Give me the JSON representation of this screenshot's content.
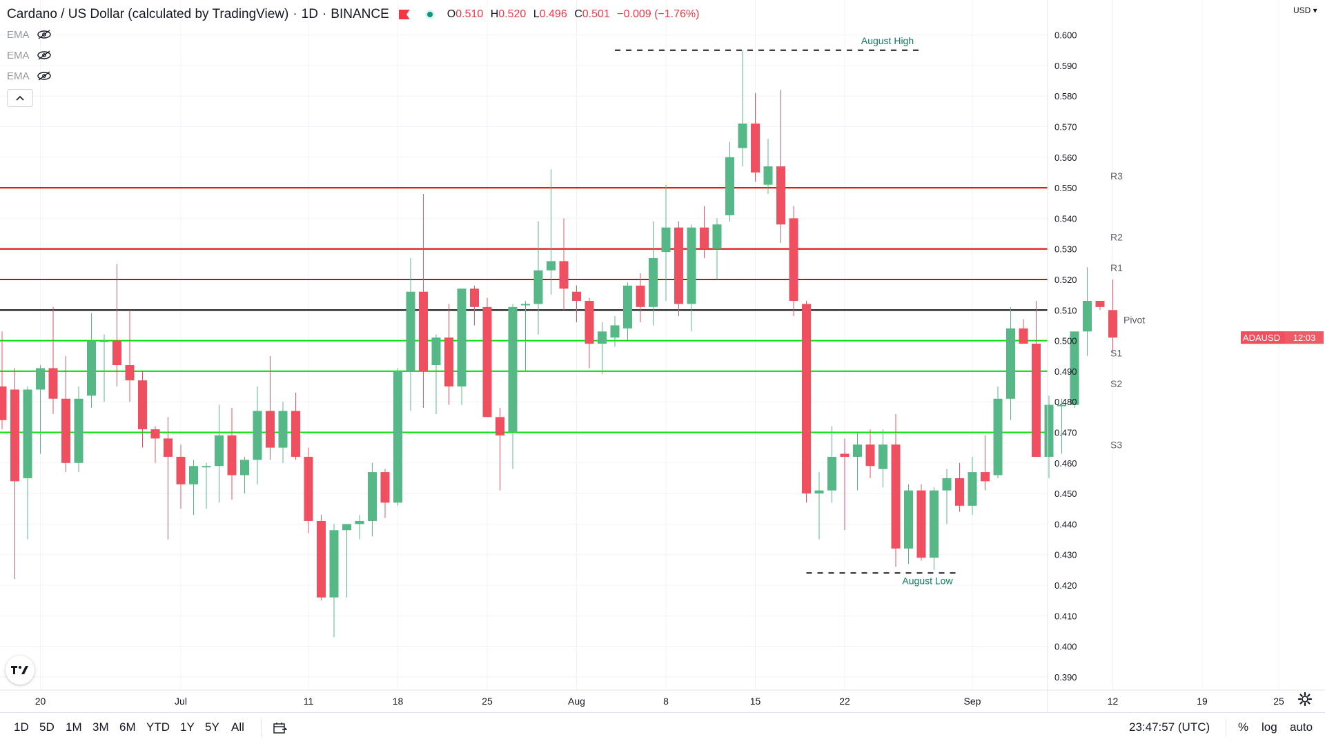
{
  "header": {
    "symbol_title": "Cardano / US Dollar (calculated by TradingView)",
    "interval": "1D",
    "exchange": "BINANCE",
    "ohlc": {
      "o_label": "O",
      "o": "0.510",
      "h_label": "H",
      "h": "0.520",
      "l_label": "L",
      "l": "0.496",
      "c_label": "C",
      "c": "0.501",
      "change": "−0.009 (−1.76%)"
    }
  },
  "indicators": [
    {
      "label": "EMA",
      "icon": "eye-hidden-icon"
    },
    {
      "label": "EMA",
      "icon": "eye-hidden-icon"
    },
    {
      "label": "EMA",
      "icon": "eye-hidden-icon"
    }
  ],
  "collapse_icon": "chevron-up-icon",
  "logo": "TV",
  "currency": "USD",
  "price_tag": {
    "symbol": "ADAUSD",
    "countdown": "12:03",
    "price": 0.501
  },
  "bottom_bar": {
    "ranges": [
      "1D",
      "5D",
      "1M",
      "3M",
      "6M",
      "YTD",
      "1Y",
      "5Y",
      "All"
    ],
    "clock": "23:47:57 (UTC)",
    "percent": "%",
    "log": "log",
    "auto": "auto"
  },
  "colors": {
    "up": "#56b886",
    "down": "#ef4f5f",
    "resistance": "#e00000",
    "support": "#00e000",
    "pivot": "#000000",
    "annotation": "#0b7a60"
  },
  "chart_data": {
    "type": "candlestick",
    "title": "Cardano / US Dollar (calculated by TradingView)",
    "x_ticks": [
      {
        "label": "20",
        "i": 3
      },
      {
        "label": "Jul",
        "i": 14
      },
      {
        "label": "11",
        "i": 24
      },
      {
        "label": "18",
        "i": 31
      },
      {
        "label": "25",
        "i": 38
      },
      {
        "label": "Aug",
        "i": 45
      },
      {
        "label": "8",
        "i": 52
      },
      {
        "label": "15",
        "i": 59
      },
      {
        "label": "22",
        "i": 66
      },
      {
        "label": "Sep",
        "i": 76
      },
      {
        "label": "12",
        "i": 87
      },
      {
        "label": "19",
        "i": 94
      },
      {
        "label": "25",
        "i": 100
      }
    ],
    "y_ticks": [
      0.39,
      0.4,
      0.41,
      0.42,
      0.43,
      0.44,
      0.45,
      0.46,
      0.47,
      0.48,
      0.49,
      0.5,
      0.51,
      0.52,
      0.53,
      0.54,
      0.55,
      0.56,
      0.57,
      0.58,
      0.59,
      0.6
    ],
    "ylim": [
      0.385,
      0.611
    ],
    "candles": [
      [
        0.485,
        0.503,
        0.471,
        0.474
      ],
      [
        0.484,
        0.491,
        0.422,
        0.454
      ],
      [
        0.455,
        0.485,
        0.435,
        0.484
      ],
      [
        0.484,
        0.492,
        0.463,
        0.491
      ],
      [
        0.491,
        0.511,
        0.476,
        0.481
      ],
      [
        0.481,
        0.495,
        0.457,
        0.46
      ],
      [
        0.46,
        0.485,
        0.457,
        0.481
      ],
      [
        0.482,
        0.509,
        0.478,
        0.5
      ],
      [
        0.5,
        0.502,
        0.48,
        0.5
      ],
      [
        0.5,
        0.525,
        0.485,
        0.492
      ],
      [
        0.492,
        0.51,
        0.48,
        0.487
      ],
      [
        0.487,
        0.49,
        0.465,
        0.471
      ],
      [
        0.471,
        0.472,
        0.46,
        0.468
      ],
      [
        0.468,
        0.475,
        0.435,
        0.462
      ],
      [
        0.462,
        0.466,
        0.445,
        0.453
      ],
      [
        0.453,
        0.461,
        0.443,
        0.459
      ],
      [
        0.459,
        0.46,
        0.445,
        0.459
      ],
      [
        0.459,
        0.479,
        0.447,
        0.469
      ],
      [
        0.469,
        0.478,
        0.448,
        0.456
      ],
      [
        0.456,
        0.462,
        0.45,
        0.461
      ],
      [
        0.461,
        0.485,
        0.453,
        0.477
      ],
      [
        0.477,
        0.495,
        0.461,
        0.465
      ],
      [
        0.465,
        0.48,
        0.46,
        0.477
      ],
      [
        0.477,
        0.483,
        0.461,
        0.462
      ],
      [
        0.462,
        0.465,
        0.437,
        0.441
      ],
      [
        0.441,
        0.443,
        0.415,
        0.416
      ],
      [
        0.416,
        0.44,
        0.403,
        0.438
      ],
      [
        0.438,
        0.44,
        0.416,
        0.44
      ],
      [
        0.44,
        0.443,
        0.435,
        0.441
      ],
      [
        0.441,
        0.46,
        0.436,
        0.457
      ],
      [
        0.457,
        0.458,
        0.442,
        0.447
      ],
      [
        0.447,
        0.491,
        0.446,
        0.49
      ],
      [
        0.49,
        0.527,
        0.477,
        0.516
      ],
      [
        0.516,
        0.548,
        0.478,
        0.49
      ],
      [
        0.492,
        0.502,
        0.476,
        0.501
      ],
      [
        0.501,
        0.512,
        0.479,
        0.485
      ],
      [
        0.485,
        0.517,
        0.479,
        0.517
      ],
      [
        0.517,
        0.518,
        0.505,
        0.511
      ],
      [
        0.511,
        0.514,
        0.477,
        0.475
      ],
      [
        0.475,
        0.478,
        0.451,
        0.469
      ],
      [
        0.47,
        0.512,
        0.458,
        0.511
      ],
      [
        0.512,
        0.513,
        0.49,
        0.512
      ],
      [
        0.512,
        0.539,
        0.502,
        0.523
      ],
      [
        0.523,
        0.556,
        0.515,
        0.526
      ],
      [
        0.526,
        0.54,
        0.51,
        0.517
      ],
      [
        0.516,
        0.518,
        0.506,
        0.513
      ],
      [
        0.513,
        0.514,
        0.491,
        0.499
      ],
      [
        0.499,
        0.506,
        0.489,
        0.503
      ],
      [
        0.501,
        0.508,
        0.498,
        0.505
      ],
      [
        0.504,
        0.519,
        0.5,
        0.518
      ],
      [
        0.518,
        0.522,
        0.506,
        0.511
      ],
      [
        0.511,
        0.539,
        0.505,
        0.527
      ],
      [
        0.529,
        0.551,
        0.513,
        0.537
      ],
      [
        0.537,
        0.539,
        0.508,
        0.512
      ],
      [
        0.512,
        0.538,
        0.503,
        0.537
      ],
      [
        0.537,
        0.544,
        0.527,
        0.53
      ],
      [
        0.53,
        0.54,
        0.52,
        0.538
      ],
      [
        0.541,
        0.565,
        0.539,
        0.56
      ],
      [
        0.563,
        0.595,
        0.557,
        0.571
      ],
      [
        0.571,
        0.581,
        0.552,
        0.555
      ],
      [
        0.551,
        0.566,
        0.548,
        0.557
      ],
      [
        0.557,
        0.582,
        0.532,
        0.538
      ],
      [
        0.54,
        0.544,
        0.508,
        0.513
      ],
      [
        0.512,
        0.513,
        0.447,
        0.45
      ],
      [
        0.45,
        0.457,
        0.435,
        0.451
      ],
      [
        0.451,
        0.472,
        0.447,
        0.462
      ],
      [
        0.463,
        0.468,
        0.438,
        0.462
      ],
      [
        0.462,
        0.47,
        0.451,
        0.466
      ],
      [
        0.466,
        0.471,
        0.455,
        0.459
      ],
      [
        0.458,
        0.471,
        0.452,
        0.466
      ],
      [
        0.466,
        0.476,
        0.426,
        0.432
      ],
      [
        0.432,
        0.453,
        0.427,
        0.451
      ],
      [
        0.451,
        0.453,
        0.428,
        0.429
      ],
      [
        0.429,
        0.452,
        0.425,
        0.451
      ],
      [
        0.451,
        0.458,
        0.44,
        0.455
      ],
      [
        0.455,
        0.46,
        0.444,
        0.446
      ],
      [
        0.446,
        0.462,
        0.443,
        0.457
      ],
      [
        0.457,
        0.469,
        0.451,
        0.454
      ],
      [
        0.456,
        0.485,
        0.455,
        0.481
      ],
      [
        0.481,
        0.511,
        0.474,
        0.504
      ],
      [
        0.504,
        0.507,
        0.499,
        0.499
      ],
      [
        0.499,
        0.513,
        0.462,
        0.462
      ],
      [
        0.462,
        0.482,
        0.455,
        0.479
      ],
      [
        0.479,
        0.481,
        0.463,
        0.479
      ],
      [
        0.479,
        0.502,
        0.478,
        0.503
      ],
      [
        0.503,
        0.524,
        0.495,
        0.513
      ],
      [
        0.513,
        0.512,
        0.51,
        0.511
      ],
      [
        0.51,
        0.52,
        0.496,
        0.501
      ]
    ],
    "levels": [
      {
        "label": "R3",
        "value": 0.55,
        "kind": "resistance"
      },
      {
        "label": "R2",
        "value": 0.53,
        "kind": "resistance"
      },
      {
        "label": "R1",
        "value": 0.52,
        "kind": "resistance"
      },
      {
        "label": "Pivot",
        "value": 0.51,
        "kind": "pivot"
      },
      {
        "label": "S1",
        "value": 0.5,
        "kind": "support"
      },
      {
        "label": "S2",
        "value": 0.49,
        "kind": "support"
      },
      {
        "label": "S3",
        "value": 0.47,
        "kind": "support"
      }
    ],
    "annotations": [
      {
        "label": "August High",
        "value": 0.595,
        "from_i": 48,
        "to_i": 72
      },
      {
        "label": "August Low",
        "value": 0.424,
        "from_i": 63,
        "to_i": 75
      }
    ],
    "grid": true
  }
}
